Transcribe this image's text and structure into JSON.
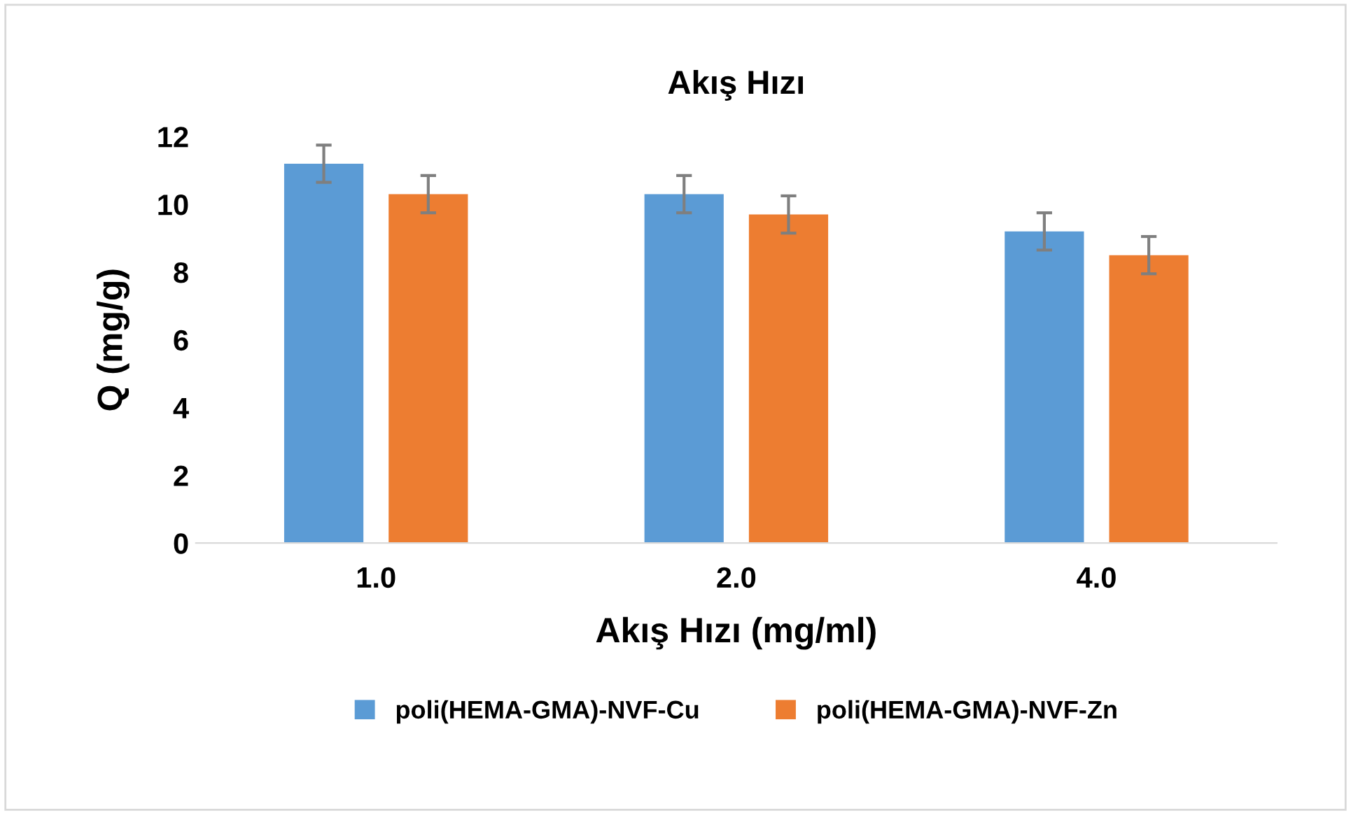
{
  "chart_data": {
    "type": "bar",
    "title": "Akış Hızı",
    "xlabel": "Akış Hızı (mg/ml)",
    "ylabel": "Q (mg/g)",
    "categories": [
      "1.0",
      "2.0",
      "4.0"
    ],
    "series": [
      {
        "name": "poli(HEMA-GMA)-NVF-Cu",
        "color": "#5b9bd5",
        "values": [
          11.2,
          10.3,
          9.2
        ],
        "errors": [
          0.55,
          0.55,
          0.55
        ]
      },
      {
        "name": "poli(HEMA-GMA)-NVF-Zn",
        "color": "#ed7d31",
        "values": [
          10.3,
          9.7,
          8.5
        ],
        "errors": [
          0.55,
          0.55,
          0.55
        ]
      }
    ],
    "ylim": [
      0,
      12
    ],
    "yticks": [
      0,
      2,
      4,
      6,
      8,
      10,
      12
    ],
    "grid": false,
    "legend": "bottom"
  }
}
